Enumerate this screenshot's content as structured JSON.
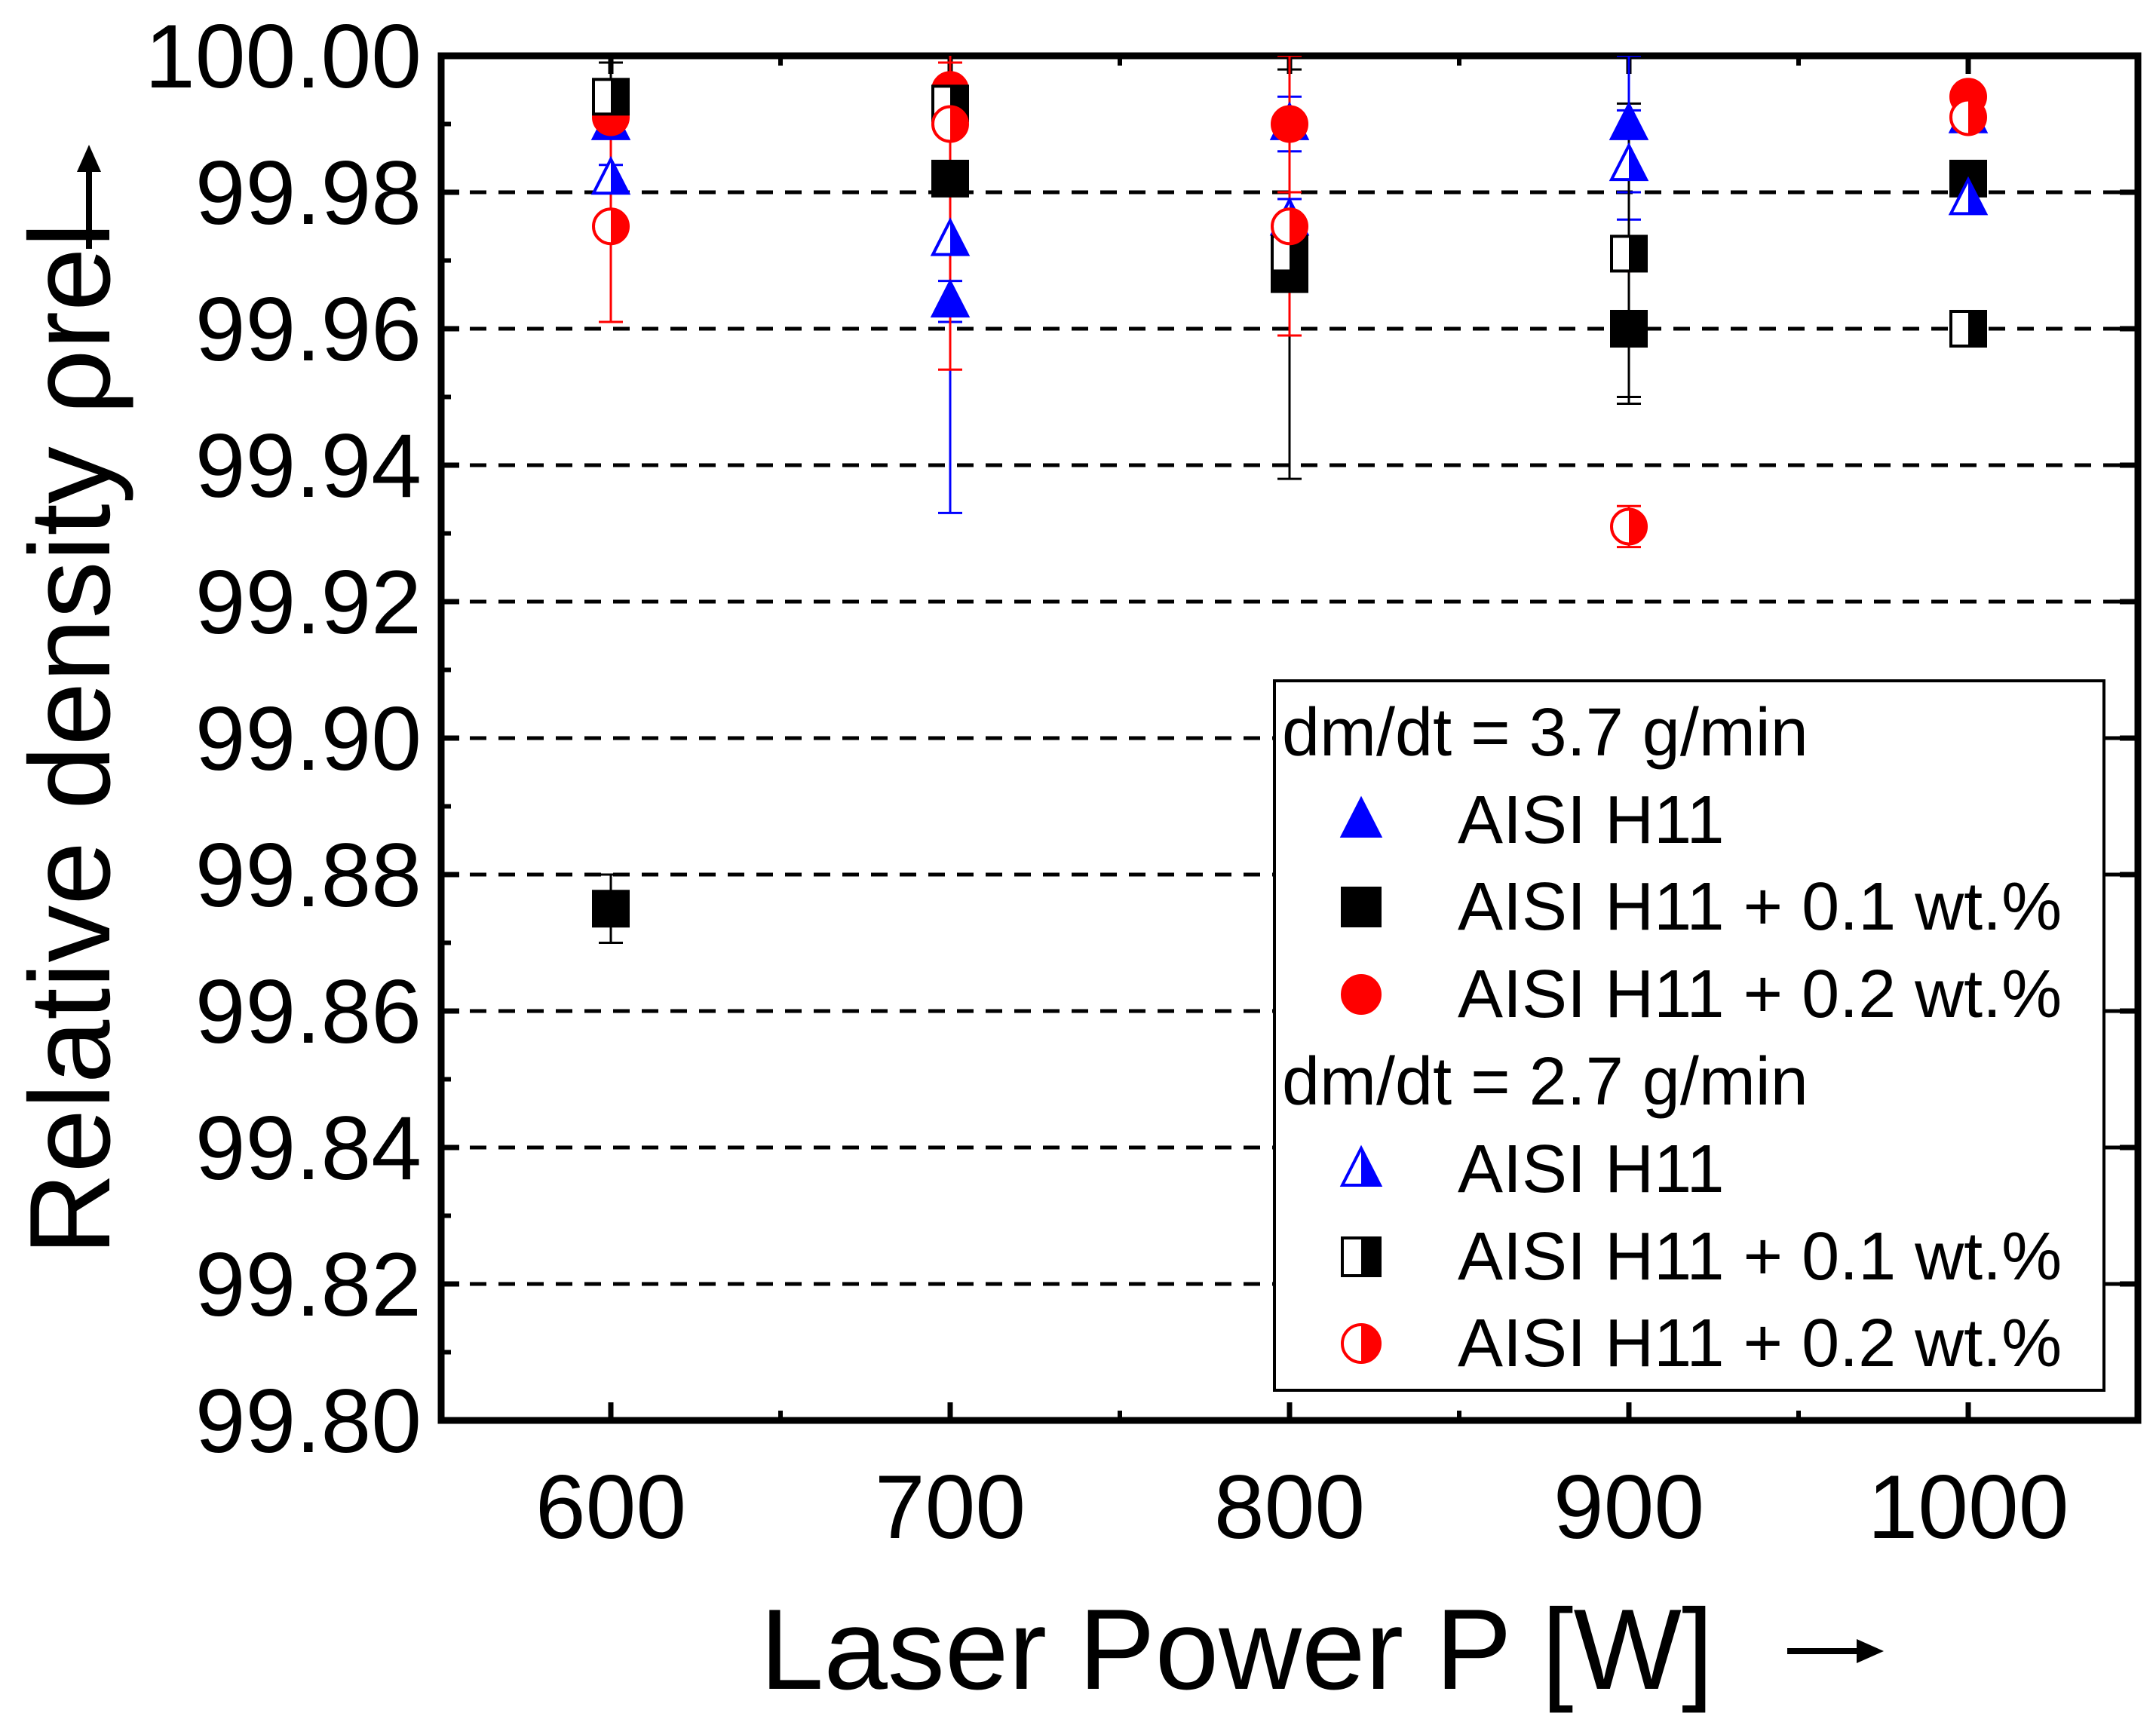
{
  "chart_data": {
    "type": "scatter",
    "xlabel": "Laser Power P [W]",
    "ylabel": "Relative density ρrel",
    "xlim": [
      550,
      1050
    ],
    "ylim": [
      99.8,
      100.0
    ],
    "x_ticks": [
      "600",
      "700",
      "800",
      "900",
      "1000"
    ],
    "y_ticks": [
      "99.80",
      "99.82",
      "99.84",
      "99.86",
      "99.88",
      "99.90",
      "99.92",
      "99.94",
      "99.96",
      "99.98",
      "100.00"
    ],
    "y_gridlines": "dashed",
    "legend": {
      "placement": "lower-right",
      "groups": [
        {
          "title": "dm/dt = 3.7 g/min",
          "entries": [
            {
              "label": "AISI H11",
              "series": 0
            },
            {
              "label": "AISI H11 + 0.1 wt.%",
              "series": 1
            },
            {
              "label": "AISI H11 + 0.2 wt.%",
              "series": 2
            }
          ]
        },
        {
          "title": "dm/dt = 2.7 g/min",
          "entries": [
            {
              "label": "AISI H11",
              "series": 3
            },
            {
              "label": "AISI H11 + 0.1 wt.%",
              "series": 4
            },
            {
              "label": "AISI H11 + 0.2 wt.%",
              "series": 5
            }
          ]
        }
      ]
    },
    "series": [
      {
        "name": "AISI H11 (3.7 g/min)",
        "marker": "triangle",
        "fill": "full",
        "color": "#0000ff",
        "points": [
          {
            "x": 600,
            "y": 99.99,
            "err": 0.002
          },
          {
            "x": 700,
            "y": 99.964,
            "err": 0.003
          },
          {
            "x": 800,
            "y": 99.99,
            "err": 0.004
          },
          {
            "x": 900,
            "y": 99.99,
            "err": 0.01
          },
          {
            "x": 1000,
            "y": 99.991,
            "err": 0.002
          }
        ]
      },
      {
        "name": "AISI H11 + 0.1 wt.% (3.7 g/min)",
        "marker": "square",
        "fill": "full",
        "color": "#000000",
        "points": [
          {
            "x": 600,
            "y": 99.875,
            "err": 0.005
          },
          {
            "x": 700,
            "y": 99.982,
            "err": 0.002
          },
          {
            "x": 800,
            "y": 99.968,
            "err": 0.03
          },
          {
            "x": 900,
            "y": 99.96,
            "err": 0.01
          },
          {
            "x": 1000,
            "y": 99.982,
            "err": 0.002
          }
        ]
      },
      {
        "name": "AISI H11 + 0.2 wt.% (3.7 g/min)",
        "marker": "circle",
        "fill": "full",
        "color": "#ff0000",
        "points": [
          {
            "x": 600,
            "y": 99.991,
            "err": 0.002
          },
          {
            "x": 700,
            "y": 99.995,
            "err": 0.004
          },
          {
            "x": 800,
            "y": 99.99,
            "err": 0.01
          },
          {
            "x": 900,
            "y": 99.971,
            "err": 0.002
          },
          {
            "x": 1000,
            "y": 99.994,
            "err": 0.002
          }
        ]
      },
      {
        "name": "AISI H11 (2.7 g/min)",
        "marker": "triangle",
        "fill": "half",
        "color": "#0000ff",
        "points": [
          {
            "x": 600,
            "y": 99.982,
            "err": 0.002
          },
          {
            "x": 700,
            "y": 99.973,
            "err": 0.04
          },
          {
            "x": 800,
            "y": 99.976,
            "err": 0.003
          },
          {
            "x": 900,
            "y": 99.984,
            "err": 0.008
          },
          {
            "x": 1000,
            "y": 99.979,
            "err": 0.002
          }
        ]
      },
      {
        "name": "AISI H11 + 0.1 wt.% (2.7 g/min)",
        "marker": "square",
        "fill": "half",
        "color": "#000000",
        "points": [
          {
            "x": 600,
            "y": 99.994,
            "err": 0.005
          },
          {
            "x": 700,
            "y": 99.993,
            "err": 0.002
          },
          {
            "x": 800,
            "y": 99.971,
            "err": 0.003
          },
          {
            "x": 900,
            "y": 99.971,
            "err": 0.022
          },
          {
            "x": 1000,
            "y": 99.96,
            "err": 0.002
          }
        ]
      },
      {
        "name": "AISI H11 + 0.2 wt.% (2.7 g/min)",
        "marker": "circle",
        "fill": "half",
        "color": "#ff0000",
        "points": [
          {
            "x": 600,
            "y": 99.975,
            "err": 0.014
          },
          {
            "x": 700,
            "y": 99.99,
            "err": 0.036
          },
          {
            "x": 800,
            "y": 99.975,
            "err": 0.016
          },
          {
            "x": 900,
            "y": 99.931,
            "err": 0.003
          },
          {
            "x": 1000,
            "y": 99.991,
            "err": 0.002
          }
        ]
      }
    ]
  }
}
